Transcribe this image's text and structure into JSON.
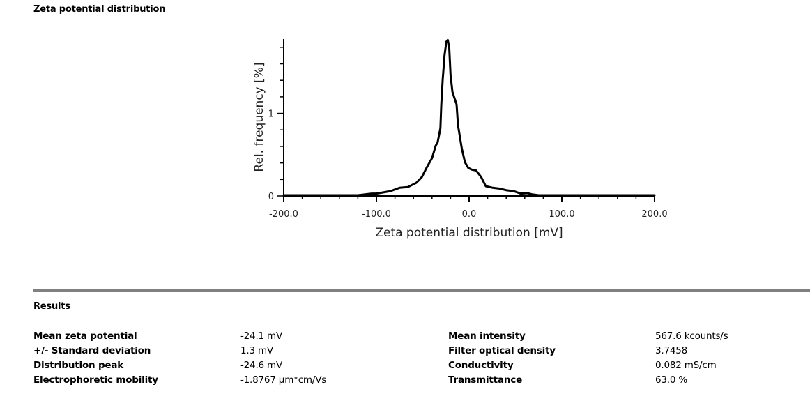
{
  "page": {
    "chart_section_title": "Zeta potential distribution",
    "results_section_title": "Results"
  },
  "chart_data": {
    "type": "line",
    "title": "",
    "xlabel": "Zeta potential distribution [mV]",
    "ylabel": "Rel. frequency [%]",
    "xlim": [
      -200,
      200
    ],
    "ylim": [
      0,
      1.9
    ],
    "x_major_ticks": [
      -200,
      -100,
      0,
      100,
      200
    ],
    "x_tick_labels": [
      "-200.0",
      "-100.0",
      "0.0",
      "100.0",
      "200.0"
    ],
    "x_minor_step": 20,
    "y_major_ticks": [
      0,
      1
    ],
    "y_tick_labels": [
      "0",
      "1"
    ],
    "y_minor_step": 0.2,
    "grid": false,
    "legend": "none",
    "series": [
      {
        "name": "Zeta potential distribution",
        "color": "#000000",
        "x": [
          -200,
          -120,
          -105,
          -100,
          -85,
          -75,
          -66,
          -57,
          -51,
          -46,
          -40,
          -36,
          -34,
          -31,
          -30,
          -28.5,
          -26.5,
          -24.5,
          -23,
          -21.5,
          -20,
          -18,
          -13.5,
          -12,
          -8,
          -4.5,
          -0.8,
          3,
          7.5,
          13,
          18,
          25.5,
          33,
          40.6,
          48,
          55.6,
          63,
          68,
          75,
          200
        ],
        "y": [
          0,
          0,
          0.02,
          0.02,
          0.05,
          0.09,
          0.1,
          0.15,
          0.22,
          0.33,
          0.45,
          0.6,
          0.64,
          0.81,
          1.1,
          1.4,
          1.7,
          1.86,
          1.88,
          1.8,
          1.45,
          1.25,
          1.1,
          0.85,
          0.57,
          0.4,
          0.33,
          0.31,
          0.3,
          0.22,
          0.11,
          0.09,
          0.08,
          0.06,
          0.05,
          0.02,
          0.025,
          0.01,
          0,
          0
        ]
      }
    ]
  },
  "results": {
    "left": [
      {
        "label": "Mean zeta potential",
        "value": "-24.1 mV"
      },
      {
        "label": "+/- Standard deviation",
        "value": "1.3 mV"
      },
      {
        "label": "Distribution peak",
        "value": "-24.6 mV"
      },
      {
        "label": "Electrophoretic mobility",
        "value": "-1.8767 µm*cm/Vs"
      }
    ],
    "right": [
      {
        "label": "Mean intensity",
        "value": "567.6 kcounts/s"
      },
      {
        "label": "Filter optical density",
        "value": "3.7458"
      },
      {
        "label": "Conductivity",
        "value": "0.082 mS/cm"
      },
      {
        "label": "Transmittance",
        "value": "63.0 %"
      }
    ]
  }
}
